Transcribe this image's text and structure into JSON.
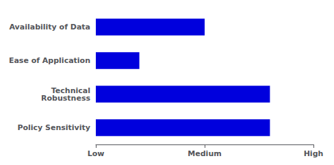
{
  "chart_data": {
    "type": "bar",
    "orientation": "horizontal",
    "categories": [
      "Policy Sensitivity",
      "Technical\nRobustness",
      "Ease of Application",
      "Availability of Data"
    ],
    "values": [
      4,
      4,
      1,
      2.5
    ],
    "color": "#0000dd",
    "xlim": [
      0,
      5
    ],
    "xticks": [
      {
        "value": 0,
        "label": "Low"
      },
      {
        "value": 2.5,
        "label": "Medium"
      },
      {
        "value": 5,
        "label": "High"
      }
    ],
    "grid": false
  }
}
